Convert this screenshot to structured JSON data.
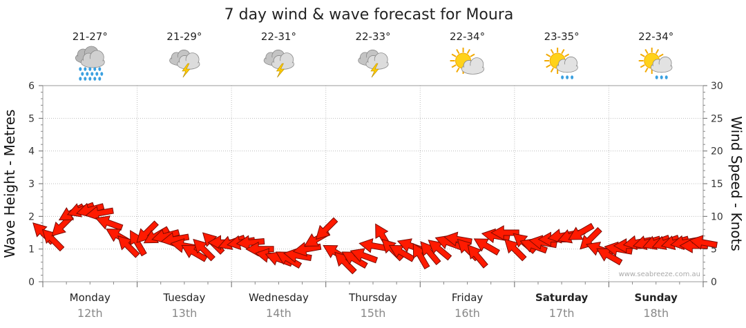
{
  "chart_data": {
    "type": "line",
    "title": "7 day wind & wave forecast for Moura",
    "ylabel_left": "Wave Height - Metres",
    "ylabel_right": "Wind Speed - Knots",
    "ylim_left": [
      0,
      6
    ],
    "ylim_right": [
      0,
      30
    ],
    "yticks_left": [
      "0",
      "1",
      "2",
      "3",
      "4",
      "5",
      "6"
    ],
    "yticks_right": [
      "0",
      "5",
      "10",
      "15",
      "20",
      "25",
      "30"
    ],
    "days": [
      {
        "day": "Monday",
        "date": "12th",
        "temp": "21-27°",
        "icon": "rain-cloud-icon",
        "bold": false
      },
      {
        "day": "Tuesday",
        "date": "13th",
        "temp": "21-29°",
        "icon": "thunderstorm-icon",
        "bold": false
      },
      {
        "day": "Wednesday",
        "date": "14th",
        "temp": "22-31°",
        "icon": "thunderstorm-icon",
        "bold": false
      },
      {
        "day": "Thursday",
        "date": "15th",
        "temp": "22-33°",
        "icon": "thunderstorm-icon",
        "bold": false
      },
      {
        "day": "Friday",
        "date": "16th",
        "temp": "22-34°",
        "icon": "sun-cloud-icon",
        "bold": false
      },
      {
        "day": "Saturday",
        "date": "17th",
        "temp": "23-35°",
        "icon": "sun-shower-icon",
        "bold": true
      },
      {
        "day": "Sunday",
        "date": "18th",
        "temp": "22-34°",
        "icon": "sun-shower-icon",
        "bold": true
      }
    ],
    "series": [
      {
        "unit": "knots",
        "x_days": [
          0.0,
          0.1,
          0.2,
          0.3,
          0.4,
          0.5,
          0.6,
          0.7,
          0.8,
          0.9,
          1.0,
          1.1,
          1.2,
          1.3,
          1.4,
          1.5,
          1.6,
          1.7,
          1.8,
          1.9,
          2.0,
          2.1,
          2.2,
          2.3,
          2.4,
          2.5,
          2.6,
          2.7,
          2.8,
          2.9,
          3.0,
          3.1,
          3.2,
          3.3,
          3.4,
          3.5,
          3.6,
          3.7,
          3.8,
          3.9,
          4.0,
          4.1,
          4.2,
          4.3,
          4.4,
          4.5,
          4.6,
          4.7,
          4.8,
          4.9,
          5.0,
          5.1,
          5.2,
          5.3,
          5.4,
          5.5,
          5.6,
          5.7,
          5.8,
          5.9,
          6.0,
          6.1,
          6.2,
          6.3,
          6.4,
          6.5,
          6.6,
          6.7,
          6.8,
          6.9,
          7.0
        ],
        "values": [
          7.5,
          6.5,
          8.5,
          10.5,
          11,
          11,
          10.5,
          9,
          7,
          5.5,
          6,
          7.5,
          7,
          7,
          6.5,
          5.5,
          4.5,
          5,
          6,
          6,
          6,
          6,
          6,
          5,
          4,
          3.5,
          3.5,
          4,
          5,
          6.5,
          8,
          4.5,
          3,
          3.5,
          4,
          5.5,
          7,
          5,
          4.5,
          5.5,
          4,
          4.5,
          5,
          6,
          6.5,
          5,
          4,
          5.5,
          7,
          7.5,
          5,
          6,
          5.5,
          6,
          6.5,
          7,
          7,
          7.5,
          6.5,
          5,
          4,
          5,
          5.5,
          6,
          6,
          6,
          6,
          6,
          6,
          5.5,
          6
        ],
        "direction_deg": [
          135,
          135,
          45,
          60,
          70,
          75,
          80,
          110,
          120,
          135,
          150,
          45,
          60,
          75,
          80,
          100,
          120,
          135,
          135,
          90,
          70,
          80,
          85,
          90,
          100,
          110,
          120,
          100,
          80,
          60,
          45,
          120,
          135,
          120,
          110,
          100,
          150,
          135,
          120,
          110,
          150,
          140,
          130,
          110,
          100,
          135,
          140,
          120,
          100,
          90,
          135,
          130,
          110,
          100,
          90,
          80,
          70,
          60,
          45,
          110,
          120,
          100,
          90,
          80,
          75,
          70,
          70,
          75,
          80,
          90,
          100
        ]
      }
    ],
    "credit": "www.seabreeze.com.au"
  }
}
